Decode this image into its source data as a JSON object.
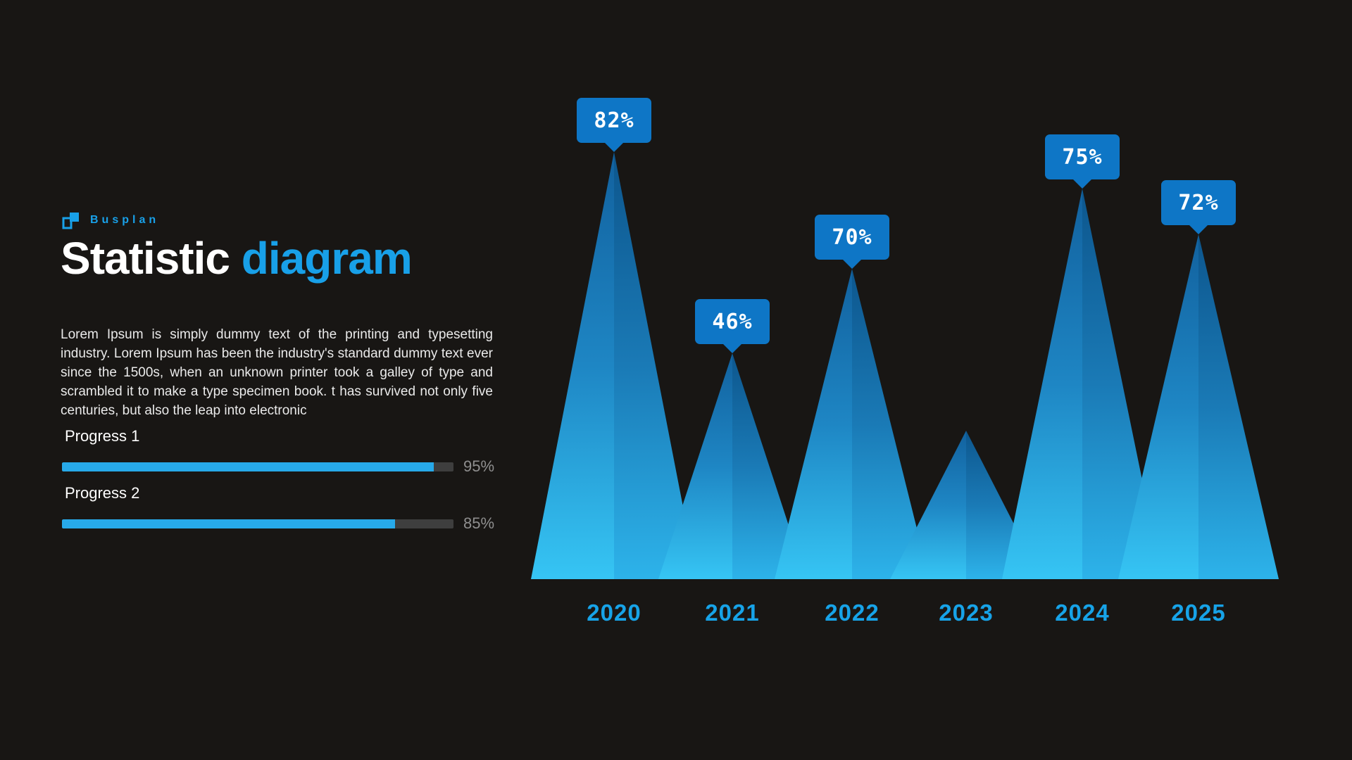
{
  "brand": {
    "name": "Busplan"
  },
  "header": {
    "title_white": "Statistic ",
    "title_accent": "diagram"
  },
  "intro": {
    "text": "Lorem Ipsum is simply dummy text of the printing and typesetting industry. Lorem Ipsum has been the industry's standard dummy text ever since the 1500s, when an unknown printer took a galley of type and scrambled it to make a type specimen book. t has survived not only five centuries, but also the leap into electronic"
  },
  "progress": {
    "items": [
      {
        "label": "Progress 1",
        "value": 95,
        "value_text": "95%"
      },
      {
        "label": "Progress 2",
        "value": 85,
        "value_text": "85%"
      }
    ]
  },
  "chart_data": {
    "type": "bar",
    "style": "triangle-peaks",
    "title": "Statistic diagram",
    "categories": [
      "2020",
      "2021",
      "2022",
      "2023",
      "2024",
      "2025"
    ],
    "values": [
      82,
      46,
      70,
      28,
      75,
      72
    ],
    "value_labels": [
      "82%",
      "46%",
      "70%",
      null,
      "75%",
      "72%"
    ],
    "labels_visible": [
      true,
      true,
      true,
      false,
      true,
      true
    ],
    "unit": "%",
    "ylim": [
      0,
      100
    ],
    "grid": false,
    "legend": "none",
    "note": "2023 peak is drawn without a percentage label; its height is estimated at about 28%."
  },
  "colors": {
    "background": "#181614",
    "accent": "#18a0e8",
    "value_label_box": "#0e76c6",
    "progress_fill": "#27a9e9",
    "progress_track": "#3e3e3e",
    "year_text": "#17a3e8"
  }
}
